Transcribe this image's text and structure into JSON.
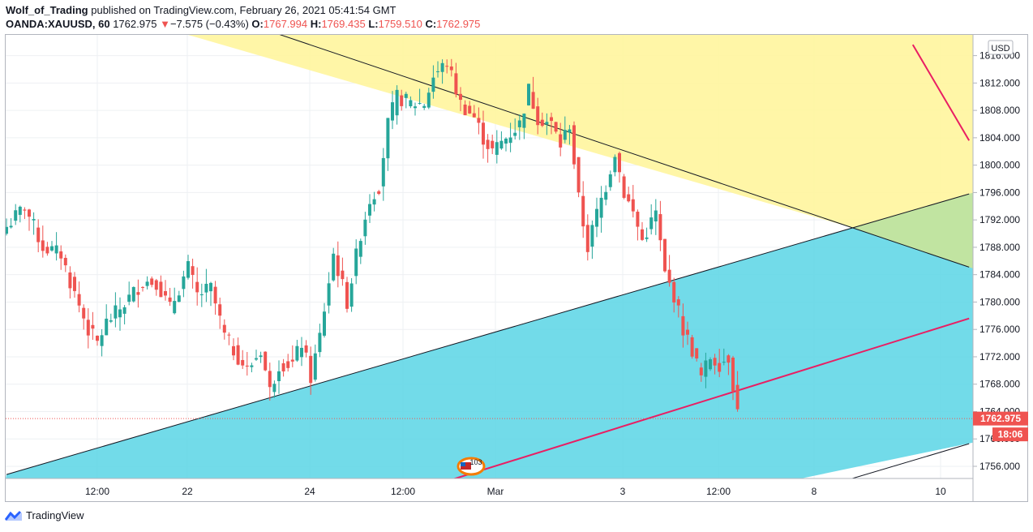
{
  "header": {
    "author": "Wolf_of_Trading",
    "published": "published on TradingView.com, February 26, 2021 05:41:54 GMT",
    "symbol": "OANDA:XAUUSD, 60",
    "last": "1762.975",
    "change_arrow": "▼",
    "change": "−7.575 (−0.43%)",
    "o_label": "O:",
    "o_val": "1767.994",
    "h_label": "H:",
    "h_val": "1769.435",
    "l_label": "L:",
    "l_val": "1759.510",
    "c_label": "C:",
    "c_val": "1762.975"
  },
  "axis": {
    "currency": "USD",
    "price_badge": "1762.975",
    "countdown_badge": "18:06",
    "event_badge": "103"
  },
  "footer": {
    "brand": "TradingView"
  },
  "colors": {
    "up": "#26a69a",
    "down": "#ef5350",
    "yellow_zone": "#fff59d",
    "cyan_zone": "#5fd6e6",
    "green_zone": "#c5e59d",
    "red_line": "#e91e63"
  },
  "chart_data": {
    "type": "candlestick",
    "symbol": "OANDA:XAUUSD",
    "interval": "60",
    "ylim": [
      1752,
      1818
    ],
    "y_ticks": [
      1756,
      1760,
      1764,
      1768,
      1772,
      1776,
      1780,
      1784,
      1788,
      1792,
      1796,
      1800,
      1804,
      1808,
      1812,
      1816
    ],
    "x_ticks": [
      "12:00",
      "22",
      "24",
      "12:00",
      "Mar",
      "3",
      "12:00",
      "8",
      "10"
    ],
    "last_price": 1762.975,
    "close_path": [
      [
        0,
        1791
      ],
      [
        4,
        1794
      ],
      [
        8,
        1788
      ],
      [
        12,
        1787
      ],
      [
        14,
        1783
      ],
      [
        18,
        1776
      ],
      [
        20,
        1774
      ],
      [
        22,
        1777
      ],
      [
        25,
        1779
      ],
      [
        30,
        1783
      ],
      [
        33,
        1783
      ],
      [
        36,
        1779
      ],
      [
        40,
        1785
      ],
      [
        42,
        1781
      ],
      [
        45,
        1782
      ],
      [
        48,
        1775
      ],
      [
        50,
        1773
      ],
      [
        53,
        1770
      ],
      [
        56,
        1773
      ],
      [
        58,
        1767
      ],
      [
        60,
        1771
      ],
      [
        63,
        1771
      ],
      [
        65,
        1774
      ],
      [
        67,
        1769
      ],
      [
        69,
        1775
      ],
      [
        72,
        1787
      ],
      [
        75,
        1780
      ],
      [
        78,
        1790
      ],
      [
        80,
        1795
      ],
      [
        82,
        1797
      ],
      [
        84,
        1806
      ],
      [
        86,
        1810
      ],
      [
        89,
        1809
      ],
      [
        92,
        1809
      ],
      [
        94,
        1813
      ],
      [
        97,
        1815
      ],
      [
        100,
        1809
      ],
      [
        103,
        1807
      ],
      [
        105,
        1804
      ],
      [
        107,
        1802
      ],
      [
        110,
        1804
      ],
      [
        113,
        1806
      ],
      [
        115,
        1811
      ],
      [
        117,
        1807
      ],
      [
        120,
        1806
      ],
      [
        122,
        1803
      ],
      [
        124,
        1806
      ],
      [
        126,
        1795
      ],
      [
        128,
        1788
      ],
      [
        130,
        1793
      ],
      [
        132,
        1797
      ],
      [
        134,
        1802
      ],
      [
        136,
        1796
      ],
      [
        138,
        1793
      ],
      [
        140,
        1789
      ],
      [
        143,
        1793
      ],
      [
        145,
        1784
      ],
      [
        147,
        1781
      ],
      [
        149,
        1776
      ],
      [
        151,
        1773
      ],
      [
        153,
        1769
      ],
      [
        155,
        1772
      ],
      [
        157,
        1771
      ],
      [
        159,
        1772
      ],
      [
        161,
        1764
      ]
    ],
    "trendlines": [
      {
        "label": "upper resistance",
        "from": [
          40,
          1823.6
        ],
        "to": [
          212,
          1785.1
        ]
      },
      {
        "label": "lower support",
        "from": [
          0,
          1754.8
        ],
        "to": [
          212,
          1795.8
        ]
      },
      {
        "label": "channel lower boundary",
        "from": [
          175,
          1752
        ],
        "to": [
          212,
          1759.3
        ]
      },
      {
        "label": "channel upper boundary (pink)",
        "from": [
          199.6,
          1817.6
        ],
        "to": [
          212,
          1803.6
        ]
      },
      {
        "label": "channel lower (pink)",
        "from": [
          88.1,
          1752
        ],
        "to": [
          212,
          1777.6
        ]
      }
    ],
    "zones": [
      "yellow resistance zone",
      "cyan support zone",
      "green overlap zone"
    ]
  }
}
